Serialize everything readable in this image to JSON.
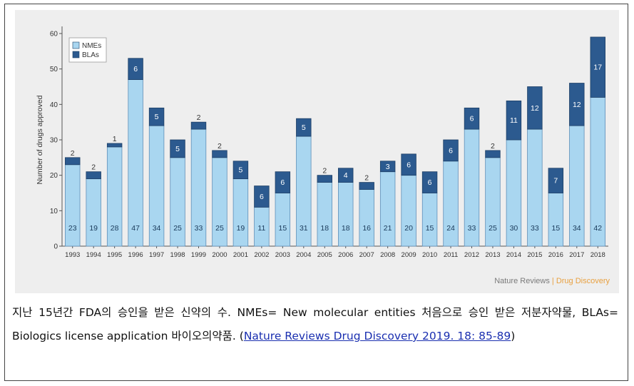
{
  "chart_data": {
    "type": "bar",
    "stacked": true,
    "categories": [
      "1993",
      "1994",
      "1995",
      "1996",
      "1997",
      "1998",
      "1999",
      "2000",
      "2001",
      "2002",
      "2003",
      "2004",
      "2005",
      "2006",
      "2007",
      "2008",
      "2009",
      "2010",
      "2011",
      "2012",
      "2013",
      "2014",
      "2015",
      "2016",
      "2017",
      "2018"
    ],
    "series": [
      {
        "name": "NMEs",
        "color": "#a9d6f0",
        "values": [
          23,
          19,
          28,
          47,
          34,
          25,
          33,
          25,
          19,
          11,
          15,
          31,
          18,
          18,
          16,
          21,
          20,
          15,
          24,
          33,
          25,
          30,
          33,
          15,
          34,
          42
        ]
      },
      {
        "name": "BLAs",
        "color": "#2c5a8f",
        "values": [
          2,
          2,
          1,
          6,
          5,
          5,
          2,
          2,
          5,
          6,
          6,
          5,
          2,
          4,
          2,
          3,
          6,
          6,
          6,
          6,
          2,
          11,
          12,
          7,
          12,
          17
        ]
      }
    ],
    "ylabel": "Number of drugs approved",
    "xlabel": "",
    "ylim": [
      0,
      60
    ],
    "yticks": [
      0,
      10,
      20,
      30,
      40,
      50,
      60
    ],
    "legend_position": "top-left",
    "grid": false
  },
  "credit": {
    "part1": "Nature Reviews",
    "sep": " | ",
    "part2": "Drug Discovery"
  },
  "caption": {
    "text": "지난 15년간 FDA의 승인을 받은 신약의 수. NMEs= New molecular entities 처음으로 승인 받은 저분자약물, BLAs= Biologics license application 바이오의약품. (",
    "link": "Nature Reviews Drug Discovery 2019. 18: 85-89",
    "end": ")"
  }
}
